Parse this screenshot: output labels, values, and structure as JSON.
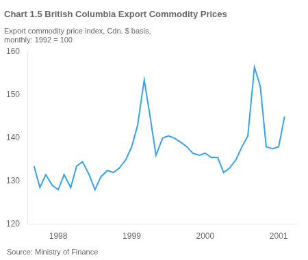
{
  "chart_data": {
    "type": "line",
    "title": "Chart 1.5 British Columbia Export Commodity Prices",
    "subtitle": "Export commodity price index, Cdn. $ basis,\nmonthly: 1992 = 100",
    "annotations": [
      "Source: Ministry of Finance"
    ],
    "x": [
      1997.67,
      1997.75,
      1997.83,
      1997.92,
      1998.0,
      1998.08,
      1998.17,
      1998.25,
      1998.33,
      1998.42,
      1998.5,
      1998.58,
      1998.67,
      1998.75,
      1998.83,
      1998.92,
      1999.0,
      1999.08,
      1999.17,
      1999.25,
      1999.33,
      1999.42,
      1999.5,
      1999.58,
      1999.67,
      1999.75,
      1999.83,
      1999.92,
      2000.0,
      2000.08,
      2000.17,
      2000.25,
      2000.33,
      2000.42,
      2000.5,
      2000.58,
      2000.67,
      2000.75,
      2000.83,
      2000.92,
      2001.0,
      2001.08
    ],
    "values": [
      133.5,
      128.5,
      131.5,
      129.0,
      128.0,
      131.5,
      128.5,
      133.5,
      134.5,
      131.5,
      128.0,
      131.0,
      132.5,
      132.0,
      133.0,
      135.0,
      138.0,
      143.0,
      153.5,
      145.0,
      136.0,
      140.0,
      140.5,
      140.0,
      139.0,
      138.0,
      136.5,
      136.0,
      136.5,
      135.5,
      135.5,
      132.0,
      133.0,
      135.0,
      138.0,
      140.5,
      156.5,
      152.0,
      138.0,
      137.5,
      138.0,
      145.0
    ],
    "xlim": [
      1997.58,
      2001.25
    ],
    "xticks": [
      1998,
      1999,
      2000,
      2001
    ],
    "ylim": [
      120,
      160
    ],
    "yticks": [
      120,
      130,
      140,
      150,
      160
    ],
    "grid": false
  }
}
